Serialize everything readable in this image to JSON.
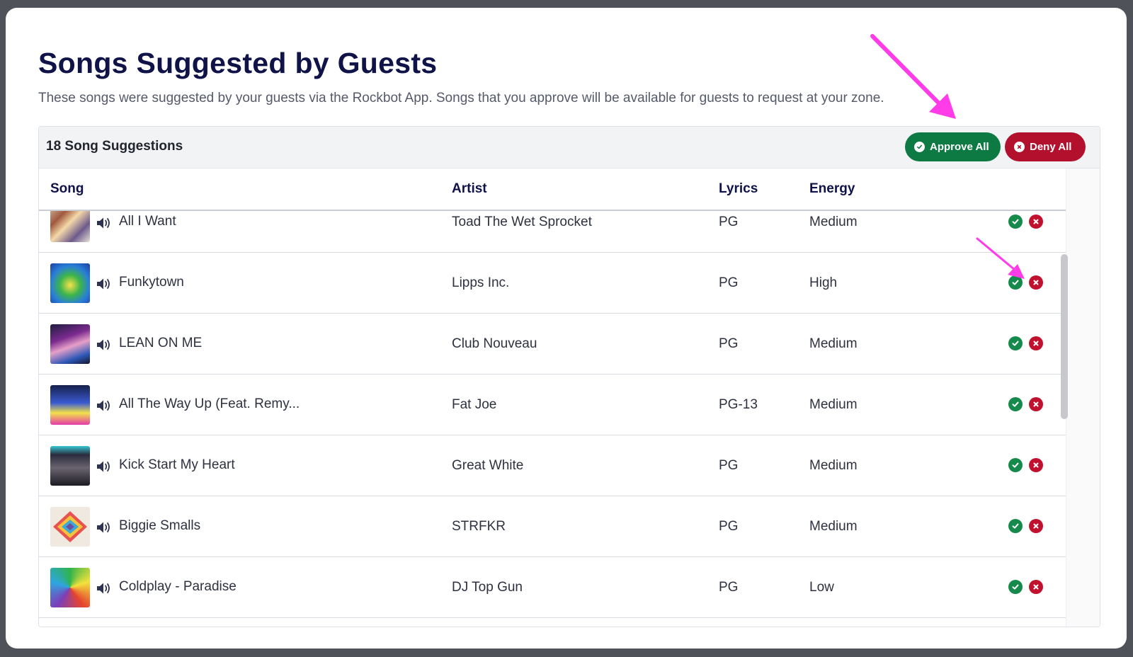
{
  "modal": {
    "title": "Songs Suggested by Guests",
    "subtitle": "These songs were suggested by your guests via the Rockbot App. Songs that you approve will be available for guests to request at your zone."
  },
  "toolbar": {
    "count_label": "18 Song Suggestions",
    "approve_all_label": "Approve All",
    "deny_all_label": "Deny All"
  },
  "table": {
    "columns": [
      "Song",
      "Artist",
      "Lyrics",
      "Energy"
    ],
    "rows": [
      {
        "song": "All I Want",
        "artist": "Toad The Wet Sprocket",
        "lyrics": "PG",
        "energy": "Medium"
      },
      {
        "song": "Funkytown",
        "artist": "Lipps Inc.",
        "lyrics": "PG",
        "energy": "High"
      },
      {
        "song": "LEAN ON ME",
        "artist": "Club Nouveau",
        "lyrics": "PG",
        "energy": "Medium"
      },
      {
        "song": "All The Way Up (Feat. Remy...",
        "artist": "Fat Joe",
        "lyrics": "PG-13",
        "energy": "Medium"
      },
      {
        "song": "Kick Start My Heart",
        "artist": "Great White",
        "lyrics": "PG",
        "energy": "Medium"
      },
      {
        "song": "Biggie Smalls",
        "artist": "STRFKR",
        "lyrics": "PG",
        "energy": "Medium"
      },
      {
        "song": "Coldplay - Paradise",
        "artist": "DJ Top Gun",
        "lyrics": "PG",
        "energy": "Low"
      }
    ]
  },
  "icons": {
    "speaker": "speaker-icon",
    "approve": "check-circle-icon",
    "deny": "x-circle-icon",
    "annotation": "arrow-annotation"
  },
  "colors": {
    "title": "#0f1348",
    "approve": "#0d7a43",
    "deny": "#b3102e",
    "annotation_arrow": "#ff3ce8"
  }
}
